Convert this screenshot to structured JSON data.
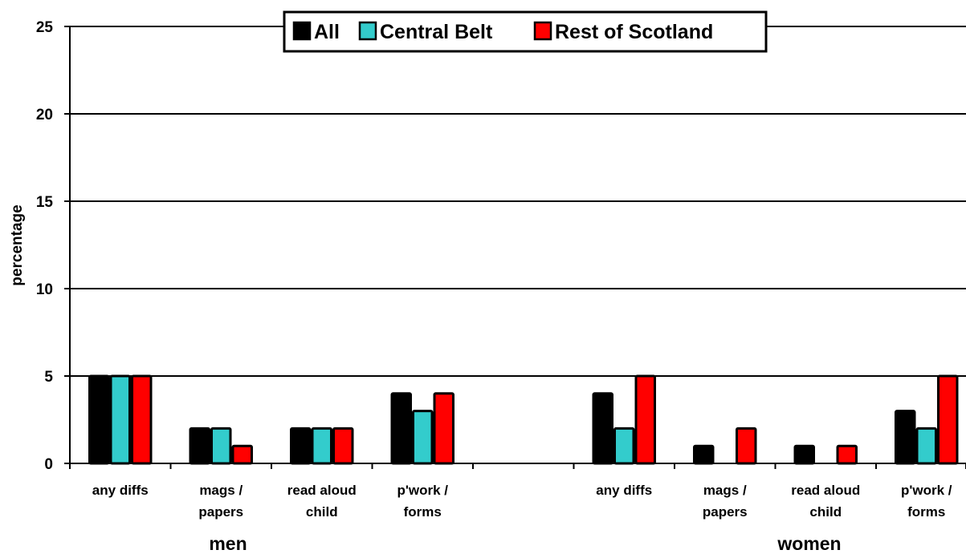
{
  "chart_data": {
    "type": "bar",
    "ylabel": "percentage",
    "ylim": [
      0,
      25
    ],
    "yticks": [
      "0",
      "5",
      "10",
      "15",
      "20",
      "25"
    ],
    "grid": true,
    "legend_position": "top-center",
    "groups": [
      {
        "label": "men",
        "categories": [
          [
            "any diffs"
          ],
          [
            "mags /",
            "papers"
          ],
          [
            "read aloud",
            "child"
          ],
          [
            "p'work /",
            "forms"
          ]
        ]
      },
      {
        "label": "women",
        "categories": [
          [
            "any diffs"
          ],
          [
            "mags /",
            "papers"
          ],
          [
            "read aloud",
            "child"
          ],
          [
            "p'work /",
            "forms"
          ]
        ]
      }
    ],
    "series": [
      {
        "name": "All",
        "color": "#000000",
        "values": [
          5,
          2,
          2,
          4,
          4,
          1,
          1,
          3
        ]
      },
      {
        "name": "Central Belt",
        "color": "#33CCCC",
        "values": [
          5,
          2,
          2,
          3,
          2,
          0,
          0,
          2
        ]
      },
      {
        "name": "Rest of Scotland",
        "color": "#FF0000",
        "values": [
          5,
          1,
          2,
          4,
          5,
          2,
          1,
          5
        ]
      }
    ]
  }
}
